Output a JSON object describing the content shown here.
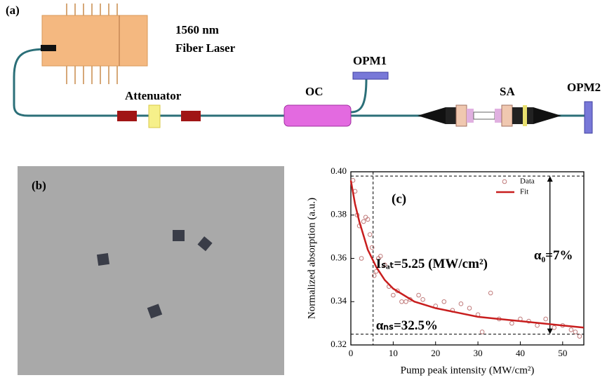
{
  "panel_a": {
    "label": "(a)",
    "laser": [
      "1560 nm",
      "Fiber Laser"
    ],
    "attenuator": "Attenuator",
    "coupler": "OC",
    "opm1": "OPM1",
    "sa": "SA",
    "opm2": "OPM2"
  },
  "panel_b": {
    "label": "(b)"
  },
  "chart_data": {
    "type": "scatter",
    "panel_label": "(c)",
    "xlabel": "Pump peak intensity (MW/cm²)",
    "ylabel": "Normalized absorption (a.u.)",
    "xlim": [
      0,
      55
    ],
    "ylim": [
      0.32,
      0.4
    ],
    "xticks": [
      0,
      10,
      20,
      30,
      40,
      50
    ],
    "yticks": [
      0.32,
      0.34,
      0.36,
      0.38,
      {
        "value": 0.4,
        "label": "0.40"
      }
    ],
    "legend": "upper right",
    "series": [
      {
        "name": "Data",
        "type": "scatter",
        "color": "#c07a7a",
        "x": [
          0.5,
          1,
          1.5,
          2,
          2.5,
          3,
          3.5,
          4,
          4.5,
          5,
          5.5,
          6,
          6.5,
          7,
          8,
          9,
          10,
          11,
          12,
          13,
          14,
          16,
          17,
          20,
          22,
          24,
          26,
          28,
          30,
          31,
          33,
          35,
          38,
          40,
          42,
          44,
          46,
          48,
          50,
          52,
          53,
          54
        ],
        "values": [
          0.396,
          0.391,
          0.38,
          0.375,
          0.36,
          0.377,
          0.379,
          0.378,
          0.371,
          0.365,
          0.352,
          0.354,
          0.36,
          0.361,
          0.357,
          0.347,
          0.343,
          0.345,
          0.34,
          0.34,
          0.341,
          0.343,
          0.341,
          0.338,
          0.34,
          0.336,
          0.339,
          0.337,
          0.334,
          0.326,
          0.344,
          0.332,
          0.33,
          0.332,
          0.331,
          0.329,
          0.332,
          0.328,
          0.329,
          0.327,
          0.326,
          0.324
        ]
      },
      {
        "name": "Fit",
        "type": "line",
        "color": "#c81e1e",
        "x": [
          0,
          1,
          2,
          4,
          6,
          8,
          10,
          15,
          20,
          25,
          30,
          35,
          40,
          45,
          50,
          55
        ],
        "values": [
          0.396,
          0.385,
          0.377,
          0.364,
          0.356,
          0.35,
          0.346,
          0.34,
          0.337,
          0.335,
          0.333,
          0.332,
          0.331,
          0.33,
          0.329,
          0.328
        ]
      }
    ],
    "annotations": [
      "Iₛₐₜ=5.25 (MW/cm²)",
      "α₀=7%",
      "αₙₛ=32.5%"
    ],
    "reference_lines": {
      "y": [
        0.398,
        0.325
      ],
      "x": [
        5.25
      ]
    }
  }
}
